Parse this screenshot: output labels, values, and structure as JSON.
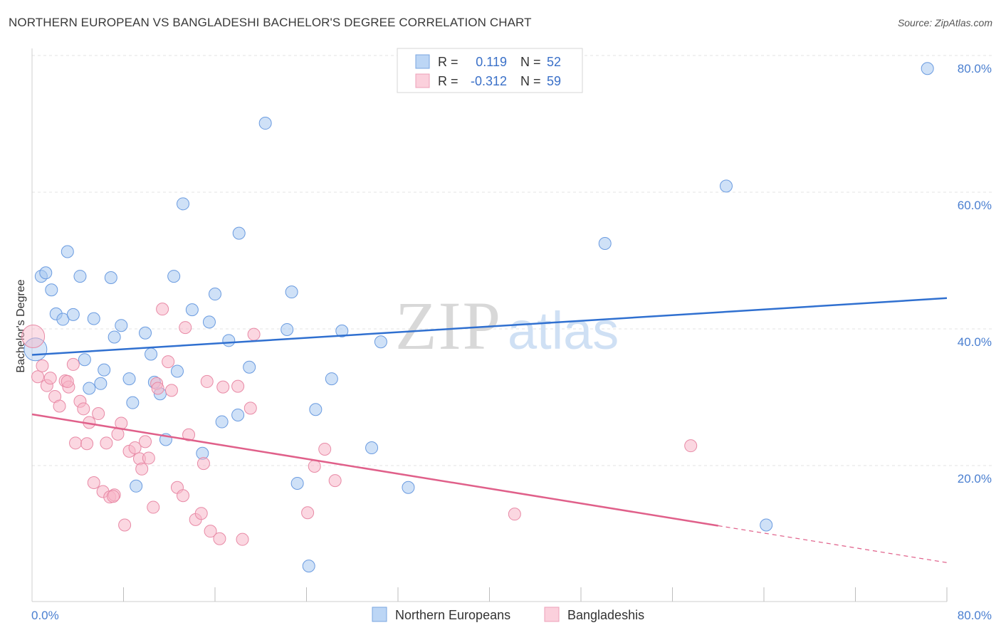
{
  "title": "NORTHERN EUROPEAN VS BANGLADESHI BACHELOR'S DEGREE CORRELATION CHART",
  "source": "Source: ZipAtlas.com",
  "watermark": {
    "zip": "ZIP",
    "atlas": "atlas"
  },
  "legend": {
    "rows": [
      {
        "r_label": "R =",
        "r_value": "0.119",
        "n_label": "N =",
        "n_value": "52",
        "color": "#a8c8f0"
      },
      {
        "r_label": "R =",
        "r_value": "-0.312",
        "n_label": "N =",
        "n_value": "59",
        "color": "#f7b6c8"
      }
    ]
  },
  "bottom_legend": [
    "Northern Europeans",
    "Bangladeshis"
  ],
  "chart_data": {
    "type": "scatter",
    "title": "NORTHERN EUROPEAN VS BANGLADESHI BACHELOR'S DEGREE CORRELATION CHART",
    "xlabel": "",
    "ylabel": "Bachelor's Degree",
    "xlim": [
      0,
      80
    ],
    "ylim": [
      0,
      82
    ],
    "x_tick_labels": [
      "0.0%",
      "80.0%"
    ],
    "y_ticks": [
      20,
      40,
      60,
      80
    ],
    "y_tick_labels": [
      "20.0%",
      "40.0%",
      "60.0%",
      "80.0%"
    ],
    "grid": true,
    "series": [
      {
        "name": "Northern Europeans",
        "color": "#a8c8f0",
        "stroke": "#6a9be0",
        "points": [
          [
            0.3,
            37.0
          ],
          [
            0.8,
            47.7
          ],
          [
            1.2,
            48.2
          ],
          [
            1.7,
            45.7
          ],
          [
            2.1,
            42.2
          ],
          [
            2.7,
            41.4
          ],
          [
            3.1,
            51.3
          ],
          [
            3.6,
            42.1
          ],
          [
            4.2,
            47.7
          ],
          [
            4.6,
            35.5
          ],
          [
            5.0,
            31.3
          ],
          [
            5.4,
            41.5
          ],
          [
            6.0,
            32.0
          ],
          [
            6.3,
            34.0
          ],
          [
            6.9,
            47.5
          ],
          [
            7.2,
            38.8
          ],
          [
            7.8,
            40.5
          ],
          [
            8.5,
            32.7
          ],
          [
            8.8,
            29.2
          ],
          [
            9.9,
            39.4
          ],
          [
            10.4,
            36.3
          ],
          [
            10.7,
            32.2
          ],
          [
            11.2,
            30.5
          ],
          [
            11.7,
            23.8
          ],
          [
            12.4,
            47.7
          ],
          [
            12.7,
            33.8
          ],
          [
            13.2,
            58.3
          ],
          [
            14.0,
            42.8
          ],
          [
            14.9,
            21.8
          ],
          [
            15.5,
            41.0
          ],
          [
            16.0,
            45.1
          ],
          [
            16.6,
            26.4
          ],
          [
            17.2,
            38.3
          ],
          [
            18.0,
            27.4
          ],
          [
            18.1,
            54.0
          ],
          [
            19.0,
            34.4
          ],
          [
            20.4,
            70.1
          ],
          [
            22.3,
            39.9
          ],
          [
            22.7,
            45.4
          ],
          [
            23.2,
            17.4
          ],
          [
            24.2,
            5.3
          ],
          [
            24.8,
            28.2
          ],
          [
            26.2,
            32.7
          ],
          [
            27.1,
            39.7
          ],
          [
            29.7,
            22.6
          ],
          [
            30.5,
            38.1
          ],
          [
            32.9,
            16.8
          ],
          [
            50.1,
            52.5
          ],
          [
            60.7,
            60.9
          ],
          [
            64.2,
            11.3
          ],
          [
            78.3,
            78.1
          ],
          [
            9.1,
            17.0
          ]
        ],
        "trend": [
          [
            0,
            36.2
          ],
          [
            80,
            44.5
          ]
        ]
      },
      {
        "name": "Bangladeshis",
        "color": "#f7b6c8",
        "stroke": "#e88aa6",
        "points": [
          [
            0.1,
            38.9
          ],
          [
            0.5,
            33.0
          ],
          [
            0.9,
            34.6
          ],
          [
            1.3,
            31.7
          ],
          [
            1.6,
            32.8
          ],
          [
            2.0,
            30.1
          ],
          [
            2.4,
            28.7
          ],
          [
            2.9,
            32.4
          ],
          [
            3.2,
            31.5
          ],
          [
            3.6,
            34.8
          ],
          [
            3.8,
            23.3
          ],
          [
            4.2,
            29.4
          ],
          [
            4.5,
            28.3
          ],
          [
            4.8,
            23.2
          ],
          [
            5.0,
            26.3
          ],
          [
            5.4,
            17.5
          ],
          [
            5.8,
            27.6
          ],
          [
            6.2,
            16.2
          ],
          [
            6.5,
            23.3
          ],
          [
            6.8,
            15.4
          ],
          [
            7.2,
            15.7
          ],
          [
            7.5,
            24.6
          ],
          [
            7.8,
            26.2
          ],
          [
            8.1,
            11.3
          ],
          [
            8.5,
            22.1
          ],
          [
            9.0,
            22.6
          ],
          [
            9.4,
            21.0
          ],
          [
            9.6,
            19.5
          ],
          [
            9.9,
            23.5
          ],
          [
            10.2,
            21.1
          ],
          [
            10.6,
            13.9
          ],
          [
            10.9,
            32.0
          ],
          [
            11.0,
            31.3
          ],
          [
            11.4,
            42.9
          ],
          [
            11.9,
            35.2
          ],
          [
            12.2,
            31.0
          ],
          [
            12.7,
            16.8
          ],
          [
            13.2,
            15.6
          ],
          [
            13.4,
            40.2
          ],
          [
            13.7,
            24.5
          ],
          [
            14.3,
            12.1
          ],
          [
            14.8,
            13.0
          ],
          [
            15.0,
            20.3
          ],
          [
            15.3,
            32.3
          ],
          [
            15.6,
            10.4
          ],
          [
            16.4,
            9.3
          ],
          [
            16.7,
            31.5
          ],
          [
            18.0,
            31.6
          ],
          [
            18.4,
            9.2
          ],
          [
            19.1,
            28.4
          ],
          [
            19.4,
            39.2
          ],
          [
            24.1,
            13.1
          ],
          [
            24.7,
            19.9
          ],
          [
            25.6,
            22.4
          ],
          [
            26.5,
            17.8
          ],
          [
            42.2,
            12.9
          ],
          [
            57.6,
            22.9
          ],
          [
            7.1,
            15.5
          ],
          [
            3.1,
            32.3
          ]
        ],
        "trend_solid": [
          [
            0,
            27.5
          ],
          [
            60,
            11.2
          ]
        ],
        "trend_dashed": [
          [
            60,
            11.2
          ],
          [
            80,
            5.8
          ]
        ]
      }
    ]
  }
}
